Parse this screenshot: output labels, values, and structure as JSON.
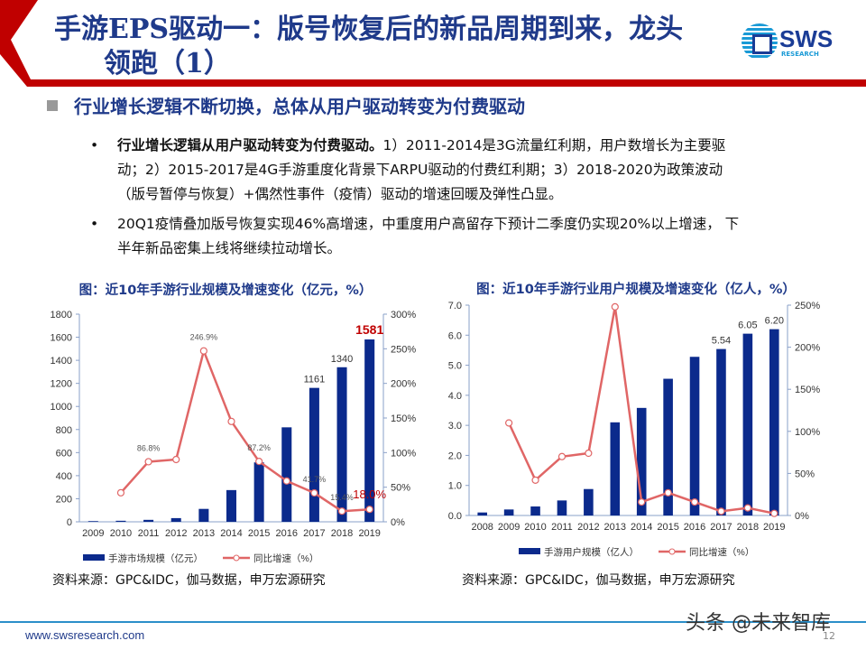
{
  "header": {
    "title_line1": "手游EPS驱动一：版号恢复后的新品周期到来，龙头",
    "title_line2": "领跑（1）",
    "logo_text": "SWS",
    "logo_sub": "RESEARCH"
  },
  "section": {
    "heading": "行业增长逻辑不断切换，总体从用户驱动转变为付费驱动"
  },
  "bullets": [
    {
      "bold": "行业增长逻辑从用户驱动转变为付费驱动。",
      "text": "1）2011-2014是3G流量红利期，用户数增长为主要驱动；2）2015-2017是4G手游重度化背景下ARPU驱动的付费红利期；3）2018-2020为政策波动（版号暂停与恢复）+偶然性事件（疫情）驱动的增速回暖及弹性凸显。"
    },
    {
      "bold": "",
      "text": "20Q1疫情叠加版号恢复实现46%高增速，中重度用户高留存下预计二季度仍实现20%以上增速， 下半年新品密集上线将继续拉动增长。"
    }
  ],
  "colors": {
    "bar": "#0b2a8c",
    "line": "#e06666",
    "title": "#1f3a8a",
    "accent_red": "#c00000"
  },
  "chart_data": [
    {
      "type": "bar+line",
      "title": "图：近10年手游行业规模及增速变化（亿元，%）",
      "categories": [
        "2009",
        "2010",
        "2011",
        "2012",
        "2013",
        "2014",
        "2015",
        "2016",
        "2017",
        "2018",
        "2019"
      ],
      "y_left": {
        "range": [
          0,
          1800
        ],
        "ticks": [
          "0",
          "200",
          "400",
          "600",
          "800",
          "1000",
          "1200",
          "1400",
          "1600",
          "1800"
        ]
      },
      "y_right": {
        "range": [
          0,
          300
        ],
        "ticks": [
          "0%",
          "50%",
          "100%",
          "150%",
          "200%",
          "250%",
          "300%"
        ]
      },
      "series": [
        {
          "name": "手游市场规模（亿元）",
          "type": "bar",
          "axis": "left",
          "values": [
            6,
            9,
            17,
            32,
            112,
            275,
            515,
            819,
            1161,
            1340,
            1581
          ],
          "labels": [
            null,
            null,
            null,
            null,
            null,
            null,
            null,
            null,
            "1161",
            "1340",
            "1581"
          ]
        },
        {
          "name": "同比增速（%）",
          "type": "line",
          "axis": "right",
          "values": [
            null,
            42,
            86.8,
            90,
            246.9,
            145,
            87.2,
            59,
            41.7,
            15.4,
            18.0
          ],
          "labels": [
            null,
            null,
            "86.8%",
            null,
            "246.9%",
            null,
            "87.2%",
            null,
            "41.7%",
            "15.4%",
            "18.0%"
          ]
        }
      ],
      "source": "资料来源：GPC&IDC，伽马数据，申万宏源研究"
    },
    {
      "type": "bar+line",
      "title": "图：近10年手游行业用户规模及增速变化（亿人，%）",
      "categories": [
        "2008",
        "2009",
        "2010",
        "2011",
        "2012",
        "2013",
        "2014",
        "2015",
        "2016",
        "2017",
        "2018",
        "2019"
      ],
      "y_left": {
        "range": [
          0,
          7
        ],
        "ticks": [
          "0.0",
          "1.0",
          "2.0",
          "3.0",
          "4.0",
          "5.0",
          "6.0",
          "7.0"
        ]
      },
      "y_right": {
        "range": [
          0,
          250
        ],
        "ticks": [
          "0%",
          "50%",
          "100%",
          "150%",
          "200%",
          "250%"
        ]
      },
      "series": [
        {
          "name": "手游用户规模（亿人）",
          "type": "bar",
          "axis": "left",
          "values": [
            0.1,
            0.2,
            0.3,
            0.5,
            0.88,
            3.1,
            3.58,
            4.55,
            5.28,
            5.54,
            6.05,
            6.2
          ],
          "labels": [
            null,
            null,
            null,
            null,
            null,
            null,
            null,
            null,
            null,
            "5.54",
            "6.05",
            "6.20"
          ]
        },
        {
          "name": "同比增速（%）",
          "type": "line",
          "axis": "right",
          "values": [
            null,
            110,
            42,
            70,
            74,
            248,
            16,
            27,
            16,
            5,
            9,
            2.5
          ],
          "labels": []
        }
      ],
      "source": "资料来源：GPC&IDC，伽马数据，申万宏源研究"
    }
  ],
  "footer": {
    "url": "www.swsresearch.com",
    "page": "12",
    "watermark": "头条 @未来智库"
  }
}
